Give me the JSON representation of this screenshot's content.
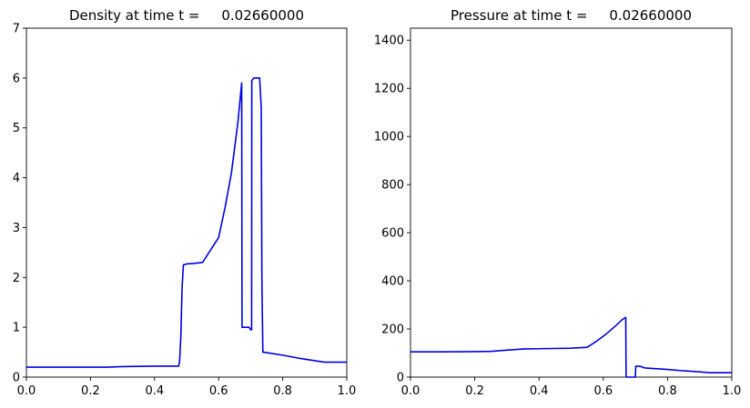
{
  "chart_data": [
    {
      "type": "line",
      "title": "Density at time t =     0.02660000",
      "xlabel": "",
      "ylabel": "",
      "xlim": [
        0.0,
        1.0
      ],
      "ylim": [
        0,
        7
      ],
      "grid": false,
      "x_ticks": [
        "0.0",
        "0.2",
        "0.4",
        "0.6",
        "0.8",
        "1.0"
      ],
      "y_ticks": [
        "0",
        "1",
        "2",
        "3",
        "4",
        "5",
        "6",
        "7"
      ],
      "series": [
        {
          "color": "#0000dd",
          "x": [
            0.0,
            0.1,
            0.2,
            0.25,
            0.3,
            0.35,
            0.4,
            0.47,
            0.475,
            0.478,
            0.482,
            0.486,
            0.49,
            0.5,
            0.52,
            0.55,
            0.57,
            0.6,
            0.62,
            0.64,
            0.66,
            0.672,
            0.673,
            0.68,
            0.695,
            0.7,
            0.703,
            0.7035,
            0.71,
            0.72,
            0.728,
            0.733,
            0.735,
            0.738,
            0.74,
            0.76,
            0.8,
            0.85,
            0.9,
            0.93,
            0.95,
            1.0
          ],
          "y": [
            0.2,
            0.2,
            0.2,
            0.2,
            0.21,
            0.215,
            0.22,
            0.22,
            0.22,
            0.3,
            0.8,
            1.8,
            2.25,
            2.27,
            2.28,
            2.3,
            2.5,
            2.8,
            3.4,
            4.1,
            5.1,
            5.9,
            1.0,
            1.0,
            1.0,
            0.95,
            0.95,
            5.95,
            6.0,
            6.0,
            6.0,
            5.4,
            2.0,
            0.5,
            0.5,
            0.48,
            0.44,
            0.38,
            0.33,
            0.3,
            0.3,
            0.3
          ]
        }
      ]
    },
    {
      "type": "line",
      "title": "Pressure at time t =     0.02660000",
      "xlabel": "",
      "ylabel": "",
      "xlim": [
        0.0,
        1.0
      ],
      "ylim": [
        0,
        1450
      ],
      "grid": false,
      "x_ticks": [
        "0.0",
        "0.2",
        "0.4",
        "0.6",
        "0.8",
        "1.0"
      ],
      "y_ticks": [
        "0",
        "200",
        "400",
        "600",
        "800",
        "1000",
        "1200",
        "1400"
      ],
      "series": [
        {
          "color": "#0000dd",
          "x": [
            0.0,
            0.1,
            0.2,
            0.25,
            0.3,
            0.35,
            0.4,
            0.5,
            0.55,
            0.58,
            0.61,
            0.64,
            0.66,
            0.67,
            0.671,
            0.675,
            0.69,
            0.7,
            0.701,
            0.715,
            0.72,
            0.73,
            0.75,
            0.8,
            0.85,
            0.9,
            0.93,
            0.96,
            1.0
          ],
          "y": [
            105,
            105,
            106,
            107,
            112,
            117,
            118,
            120,
            124,
            150,
            180,
            215,
            240,
            248,
            0,
            0,
            0,
            0,
            45,
            45,
            42,
            38,
            36,
            32,
            26,
            22,
            18,
            18,
            18
          ]
        }
      ]
    }
  ]
}
